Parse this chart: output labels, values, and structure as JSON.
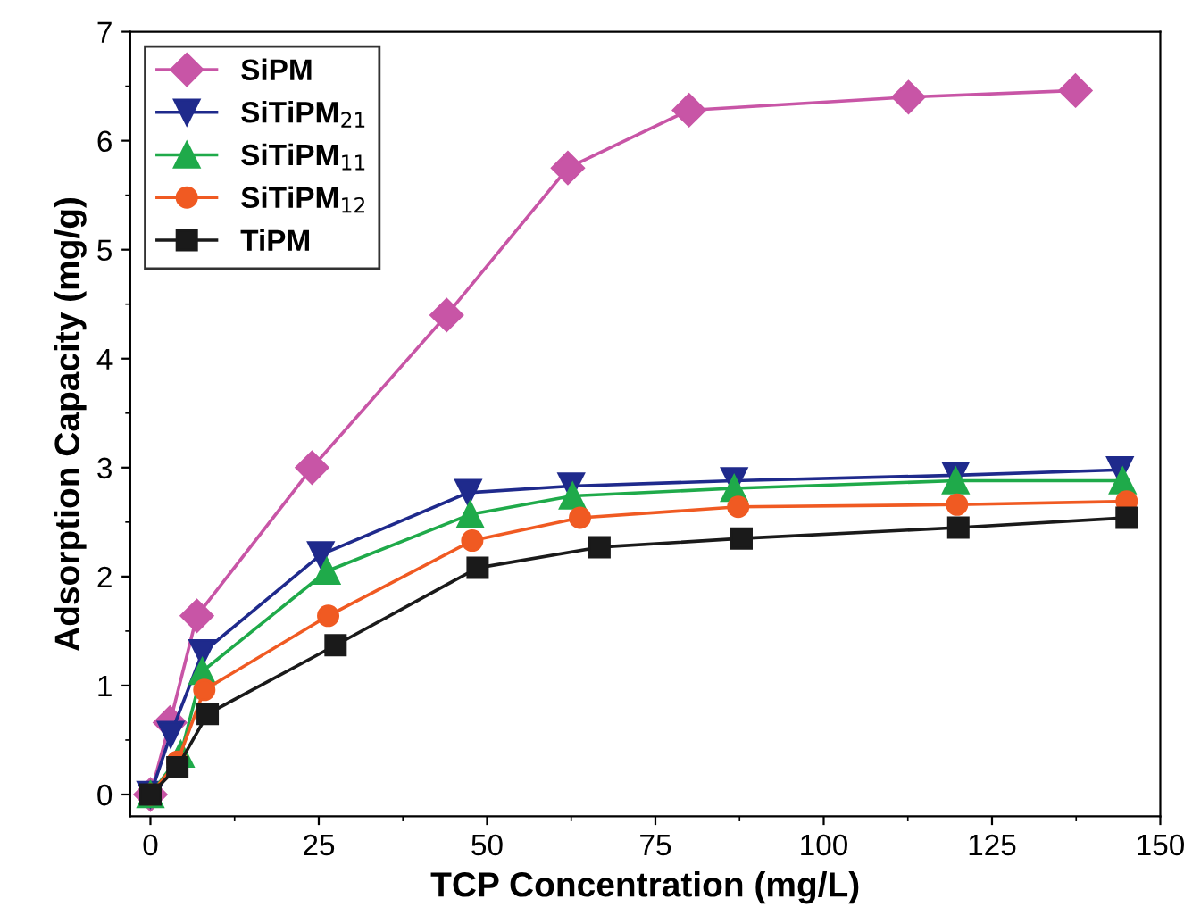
{
  "chart_data": {
    "type": "line",
    "xlabel": "TCP Concentration (mg/L)",
    "ylabel": "Adsorption Capacity (mg/g)",
    "xlim": [
      -3,
      150
    ],
    "ylim": [
      -0.2,
      7
    ],
    "xticks": [
      0,
      25,
      50,
      75,
      100,
      125,
      150
    ],
    "yticks": [
      0,
      1,
      2,
      3,
      4,
      5,
      6,
      7
    ],
    "legend": "top left",
    "grid": false,
    "series": [
      {
        "name": "SiPM",
        "color": "#c855a6",
        "marker": "diamond",
        "x": [
          0,
          2.9,
          6.9,
          24,
          44,
          62,
          80,
          112.6,
          137.4
        ],
        "values": [
          0,
          0.66,
          1.64,
          3.0,
          4.4,
          5.75,
          6.28,
          6.4,
          6.46
        ]
      },
      {
        "name": "SiTiPM$_{21}$",
        "color": "#1f2a8c",
        "marker": "triangle_down",
        "x": [
          0,
          3,
          7.7,
          25.3,
          47.2,
          62.5,
          86.7,
          119.6,
          144
        ],
        "values": [
          0,
          0.55,
          1.3,
          2.2,
          2.77,
          2.83,
          2.88,
          2.93,
          2.98
        ]
      },
      {
        "name": "SiTiPM$_{11}$",
        "color": "#1faa4a",
        "marker": "triangle",
        "x": [
          0,
          4.5,
          7.7,
          26.2,
          47.5,
          62.7,
          86.7,
          119.6,
          144.4
        ],
        "values": [
          0,
          0.37,
          1.13,
          2.05,
          2.57,
          2.74,
          2.81,
          2.88,
          2.88
        ]
      },
      {
        "name": "SiTiPM$_{12}$",
        "color": "#f05a22",
        "marker": "circle",
        "x": [
          0,
          4,
          8,
          26.4,
          47.8,
          63.8,
          87.3,
          119.8,
          145
        ],
        "values": [
          0,
          0.3,
          0.96,
          1.64,
          2.33,
          2.54,
          2.64,
          2.66,
          2.69
        ]
      },
      {
        "name": "TiPM",
        "color": "#1a1a1a",
        "marker": "square",
        "x": [
          0,
          4,
          8.5,
          27.5,
          48.6,
          66.7,
          87.8,
          120,
          145
        ],
        "values": [
          0,
          0.25,
          0.74,
          1.37,
          2.08,
          2.27,
          2.35,
          2.45,
          2.54
        ]
      }
    ]
  }
}
